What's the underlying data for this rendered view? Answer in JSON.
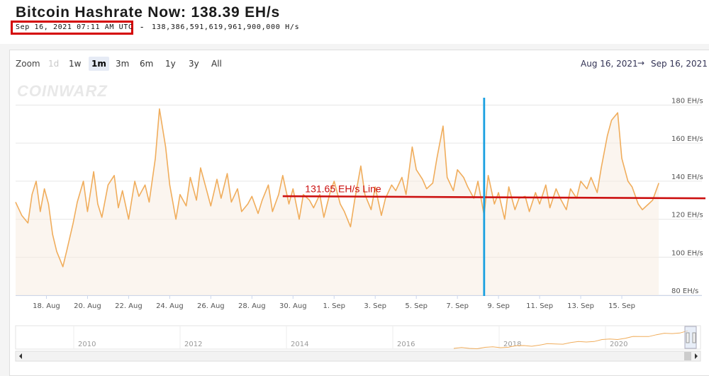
{
  "header": {
    "title": "Bitcoin Hashrate Now: 138.39 EH/s",
    "timestamp": "Sep 16, 2021 07:11 AM UTC",
    "separator": "-",
    "hashrate_full": "138,386,591,619,961,900,000 H/s"
  },
  "toolbar": {
    "zoom_label": "Zoom",
    "zoom_buttons": [
      "1d",
      "1w",
      "1m",
      "3m",
      "6m",
      "1y",
      "3y",
      "All"
    ],
    "active_zoom": "1m",
    "disabled_zoom": "1d",
    "range_from": "Aug 16, 2021",
    "range_arrow": "→",
    "range_to": "Sep 16, 2021"
  },
  "logo_text": "COINWARZ",
  "colors": {
    "series": "#f0ad5c",
    "hline": "#cc1111",
    "vline": "#1ba0e0",
    "highlight_box": "#d40000"
  },
  "annotation": {
    "label": "131.65 EH/s Line",
    "value": 131.65
  },
  "chart_data": {
    "type": "area",
    "title": "Bitcoin Hashrate Now: 138.39 EH/s",
    "xlabel": "",
    "ylabel": "",
    "ylim": [
      80,
      185
    ],
    "xlim": [
      0,
      31.5
    ],
    "x_ticks": [
      {
        "x": 1.5,
        "label": "18. Aug"
      },
      {
        "x": 3.5,
        "label": "20. Aug"
      },
      {
        "x": 5.5,
        "label": "22. Aug"
      },
      {
        "x": 7.5,
        "label": "24. Aug"
      },
      {
        "x": 9.5,
        "label": "26. Aug"
      },
      {
        "x": 11.5,
        "label": "28. Aug"
      },
      {
        "x": 13.5,
        "label": "30. Aug"
      },
      {
        "x": 15.5,
        "label": "1. Sep"
      },
      {
        "x": 17.5,
        "label": "3. Sep"
      },
      {
        "x": 19.5,
        "label": "5. Sep"
      },
      {
        "x": 21.5,
        "label": "7. Sep"
      },
      {
        "x": 23.5,
        "label": "9. Sep"
      },
      {
        "x": 25.5,
        "label": "11. Sep"
      },
      {
        "x": 27.5,
        "label": "13. Sep"
      },
      {
        "x": 29.5,
        "label": "15. Sep"
      }
    ],
    "y_ticks": [
      {
        "y": 80,
        "label": "80 EH/s"
      },
      {
        "y": 100,
        "label": "100 EH/s"
      },
      {
        "y": 120,
        "label": "120 EH/s"
      },
      {
        "y": 140,
        "label": "140 EH/s"
      },
      {
        "y": 160,
        "label": "160 EH/s"
      },
      {
        "y": 180,
        "label": "180 EH/s"
      }
    ],
    "grid": true,
    "series": [
      {
        "x": [
          0.0,
          0.3,
          0.6,
          0.8,
          1.0,
          1.2,
          1.4,
          1.6,
          1.8,
          2.0,
          2.3,
          2.5,
          2.8,
          3.0,
          3.3,
          3.5,
          3.8,
          4.0,
          4.2,
          4.5,
          4.8,
          5.0,
          5.2,
          5.5,
          5.8,
          6.0,
          6.3,
          6.5,
          6.8,
          7.0,
          7.3,
          7.5,
          7.8,
          8.0,
          8.3,
          8.5,
          8.8,
          9.0,
          9.3,
          9.5,
          9.8,
          10.0,
          10.3,
          10.5,
          10.8,
          11.0,
          11.3,
          11.5,
          11.8,
          12.0,
          12.3,
          12.5,
          12.8,
          13.0,
          13.3,
          13.5,
          13.8,
          14.0,
          14.3,
          14.5,
          14.8,
          15.0,
          15.3,
          15.5,
          15.8,
          16.0,
          16.3,
          16.5,
          16.8,
          17.0,
          17.3,
          17.5,
          17.8,
          18.0,
          18.3,
          18.5,
          18.8,
          19.0,
          19.3,
          19.5,
          19.8,
          20.0,
          20.3,
          20.5,
          20.8,
          21.0,
          21.3,
          21.5,
          21.8,
          22.0,
          22.3,
          22.5,
          22.8,
          23.0,
          23.3,
          23.5,
          23.8,
          24.0,
          24.3,
          24.5,
          24.8,
          25.0,
          25.3,
          25.5,
          25.8,
          26.0,
          26.3,
          26.5,
          26.8,
          27.0,
          27.3,
          27.5,
          27.8,
          28.0,
          28.3,
          28.5,
          28.8,
          29.0,
          29.3,
          29.5,
          29.8,
          30.0,
          30.3,
          30.5,
          30.8,
          31.0,
          31.3
        ],
        "values": [
          129,
          122,
          118,
          133,
          140,
          124,
          136,
          128,
          112,
          103,
          95,
          104,
          118,
          129,
          140,
          124,
          145,
          128,
          121,
          138,
          143,
          126,
          135,
          120,
          140,
          132,
          138,
          129,
          152,
          178,
          158,
          138,
          120,
          133,
          127,
          142,
          130,
          147,
          135,
          127,
          141,
          131,
          144,
          129,
          136,
          124,
          128,
          132,
          123,
          130,
          138,
          124,
          133,
          143,
          128,
          136,
          120,
          133,
          130,
          126,
          133,
          121,
          134,
          140,
          128,
          124,
          116,
          130,
          148,
          133,
          125,
          137,
          122,
          131,
          138,
          135,
          142,
          133,
          158,
          146,
          141,
          136,
          139,
          152,
          169,
          142,
          135,
          146,
          142,
          137,
          131,
          140,
          122,
          143,
          128,
          134,
          120,
          137,
          125,
          131,
          132,
          124,
          134,
          128,
          138,
          126,
          136,
          131,
          125,
          136,
          131,
          140,
          136,
          142,
          134,
          147,
          164,
          172,
          176,
          152,
          140,
          137,
          128,
          125,
          128,
          130,
          139
        ],
        "color": "#f0ad5c"
      }
    ],
    "annotations": [
      {
        "type": "horizontal_line",
        "y": 131.65,
        "label": "131.65 EH/s Line",
        "color": "#cc1111"
      },
      {
        "type": "vertical_line",
        "x": 22.8,
        "color": "#1ba0e0"
      }
    ],
    "navigator": {
      "x_labels": [
        "2010",
        "2012",
        "2014",
        "2016",
        "2018",
        "2020"
      ]
    }
  }
}
